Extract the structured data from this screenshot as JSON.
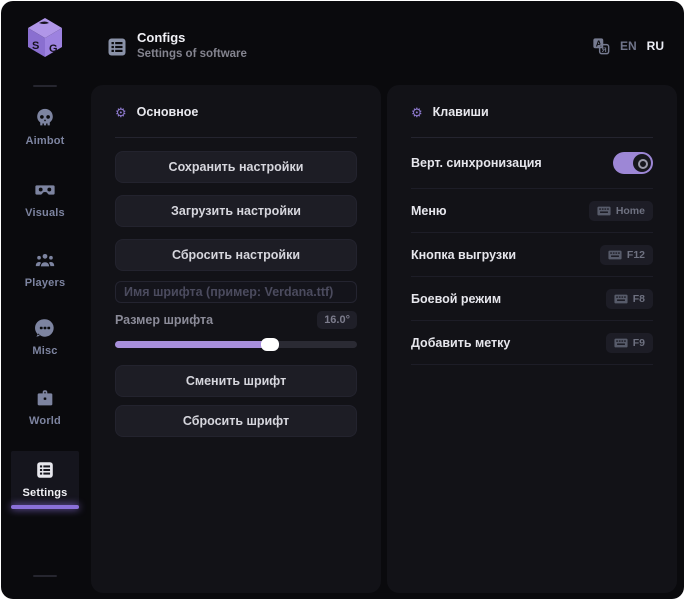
{
  "colors": {
    "accent": "#9d87d6",
    "slider_fill": "#a78fdb",
    "active_bar": "#8a70d8",
    "panel_bg": "#121217",
    "window_bg": "#0a0a0d"
  },
  "header": {
    "title": "Configs",
    "subtitle": "Settings of software",
    "lang_en": "EN",
    "lang_ru": "RU",
    "lang_selected": "RU"
  },
  "sidebar": {
    "items": [
      {
        "label": "Aimbot",
        "icon": "skull-icon",
        "active": false
      },
      {
        "label": "Visuals",
        "icon": "vr-goggles-icon",
        "active": false
      },
      {
        "label": "Players",
        "icon": "players-icon",
        "active": false
      },
      {
        "label": "Misc",
        "icon": "chat-dots-icon",
        "active": false
      },
      {
        "label": "World",
        "icon": "briefcase-icon",
        "active": false
      },
      {
        "label": "Settings",
        "icon": "list-icon",
        "active": true
      }
    ]
  },
  "main_section": {
    "title": "Основное",
    "buttons": [
      "Сохранить настройки",
      "Загрузить настройки",
      "Сбросить настройки"
    ],
    "font_name_placeholder": "Имя шрифта (пример: Verdana.ttf)",
    "font_size_label": "Размер шрифта",
    "font_size_value": "16.0°",
    "slider_percent": 64,
    "font_buttons": [
      "Сменить шрифт",
      "Сбросить шрифт"
    ]
  },
  "keys_section": {
    "title": "Клавиши",
    "rows": [
      {
        "label": "Верт. синхронизация",
        "type": "toggle",
        "value": "on"
      },
      {
        "label": "Меню",
        "type": "keybind",
        "key": "Home"
      },
      {
        "label": "Кнопка выгрузки",
        "type": "keybind",
        "key": "F12"
      },
      {
        "label": "Боевой режим",
        "type": "keybind",
        "key": "F8"
      },
      {
        "label": "Добавить метку",
        "type": "keybind",
        "key": "F9"
      }
    ]
  }
}
